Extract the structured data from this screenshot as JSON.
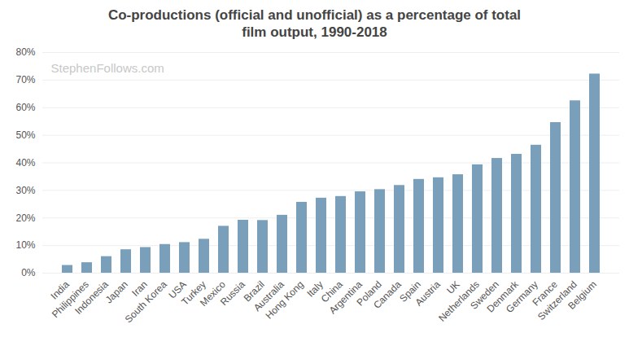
{
  "chart_data": {
    "type": "bar",
    "title": "Co-productions (official and unofficial) as a percentage of total film output, 1990-2018",
    "annotations": [
      "StephenFollows.com"
    ],
    "categories": [
      "India",
      "Philippines",
      "Indonesia",
      "Japan",
      "Iran",
      "South Korea",
      "USA",
      "Turkey",
      "Mexico",
      "Russia",
      "Brazil",
      "Australia",
      "Hong Kong",
      "Italy",
      "China",
      "Argentina",
      "Poland",
      "Canada",
      "Spain",
      "Austria",
      "UK",
      "Netherlands",
      "Sweden",
      "Denmark",
      "Germany",
      "France",
      "Switzerland",
      "Belgium"
    ],
    "values": [
      2.8,
      3.8,
      6,
      8.5,
      9.3,
      10.4,
      11.1,
      12.3,
      17,
      19.2,
      19.1,
      21,
      25.7,
      27.2,
      27.8,
      29.5,
      30.3,
      31.8,
      34,
      34.6,
      35.7,
      39.3,
      41.6,
      43.1,
      46.4,
      54.6,
      62.5,
      72.2
    ],
    "color": "#7a9fba",
    "ylim": [
      0,
      80
    ],
    "yticks": [
      {
        "value": 0,
        "label": "0%"
      },
      {
        "value": 10,
        "label": "10%"
      },
      {
        "value": 20,
        "label": "20%"
      },
      {
        "value": 30,
        "label": "30%"
      },
      {
        "value": 40,
        "label": "40%"
      },
      {
        "value": 50,
        "label": "50%"
      },
      {
        "value": 60,
        "label": "60%"
      },
      {
        "value": 70,
        "label": "70%"
      },
      {
        "value": 80,
        "label": "80%"
      }
    ],
    "grid": true
  }
}
